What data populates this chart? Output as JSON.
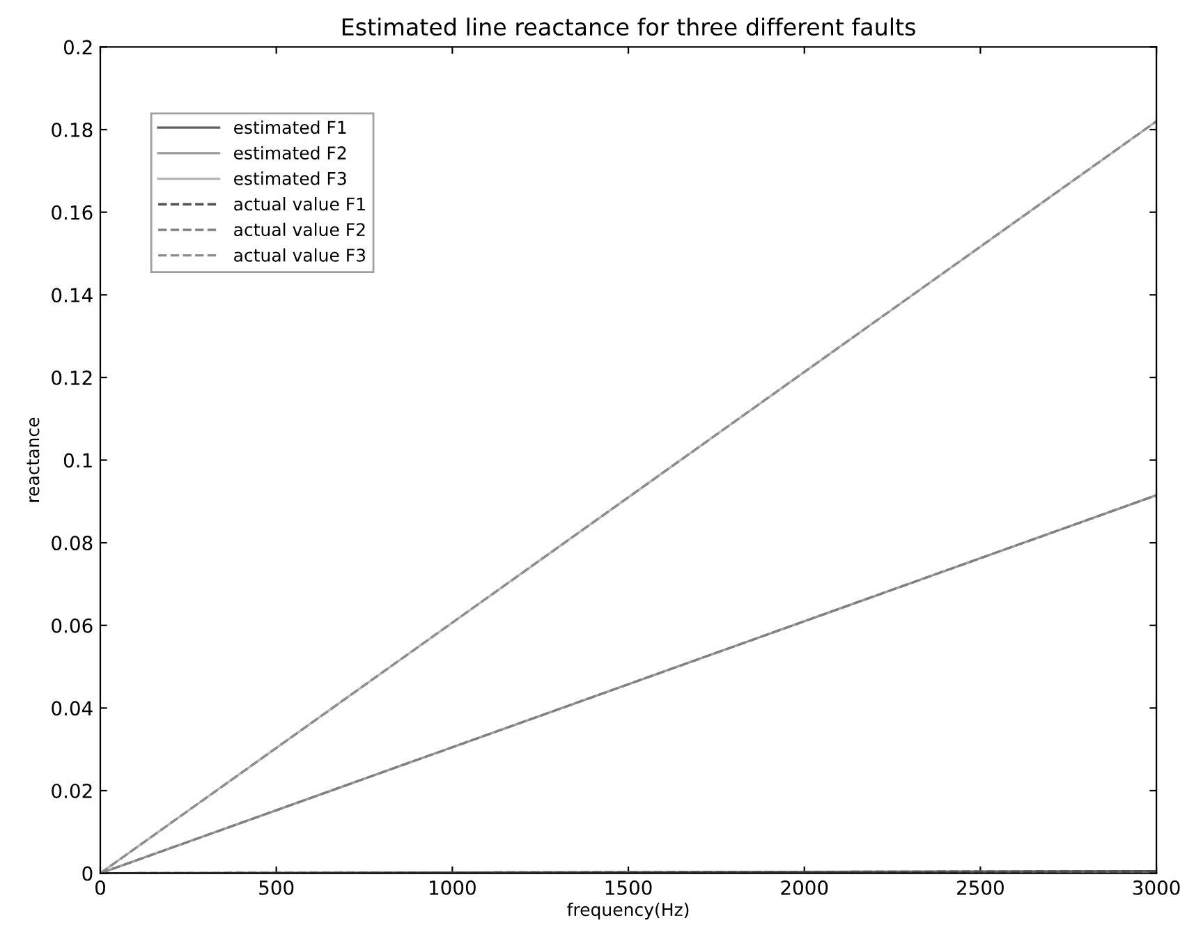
{
  "chart_data": {
    "type": "line",
    "title": "Estimated line reactance for three different faults",
    "xlabel": "frequency(Hz)",
    "ylabel": "reactance",
    "x": [
      0,
      3000
    ],
    "series": [
      {
        "name": "estimated F1",
        "color": "#606060",
        "values": [
          0,
          0.0005
        ],
        "line_style": "solid"
      },
      {
        "name": "estimated F2",
        "color": "#9a9a9a",
        "values": [
          0,
          0.0915
        ],
        "line_style": "solid"
      },
      {
        "name": "estimated F3",
        "color": "#b5b5b5",
        "values": [
          0,
          0.182
        ],
        "line_style": "solid"
      },
      {
        "name": "actual value F1",
        "color": "#505050",
        "values": [
          0,
          0.0005
        ],
        "line_style": "dashed"
      },
      {
        "name": "actual value F2",
        "color": "#808080",
        "values": [
          0,
          0.0915
        ],
        "line_style": "dashed"
      },
      {
        "name": "actual value F3",
        "color": "#8c8c8c",
        "values": [
          0,
          0.182
        ],
        "line_style": "dashed"
      }
    ],
    "xlim": [
      0,
      3000
    ],
    "xticks": [
      0,
      500,
      1000,
      1500,
      2000,
      2500,
      3000
    ],
    "ylim": [
      0,
      0.2
    ],
    "yticks": [
      0,
      0.02,
      0.04,
      0.06,
      0.08,
      0.1,
      0.12,
      0.14,
      0.16,
      0.18,
      0.2
    ],
    "grid": false,
    "legend": "top left"
  }
}
